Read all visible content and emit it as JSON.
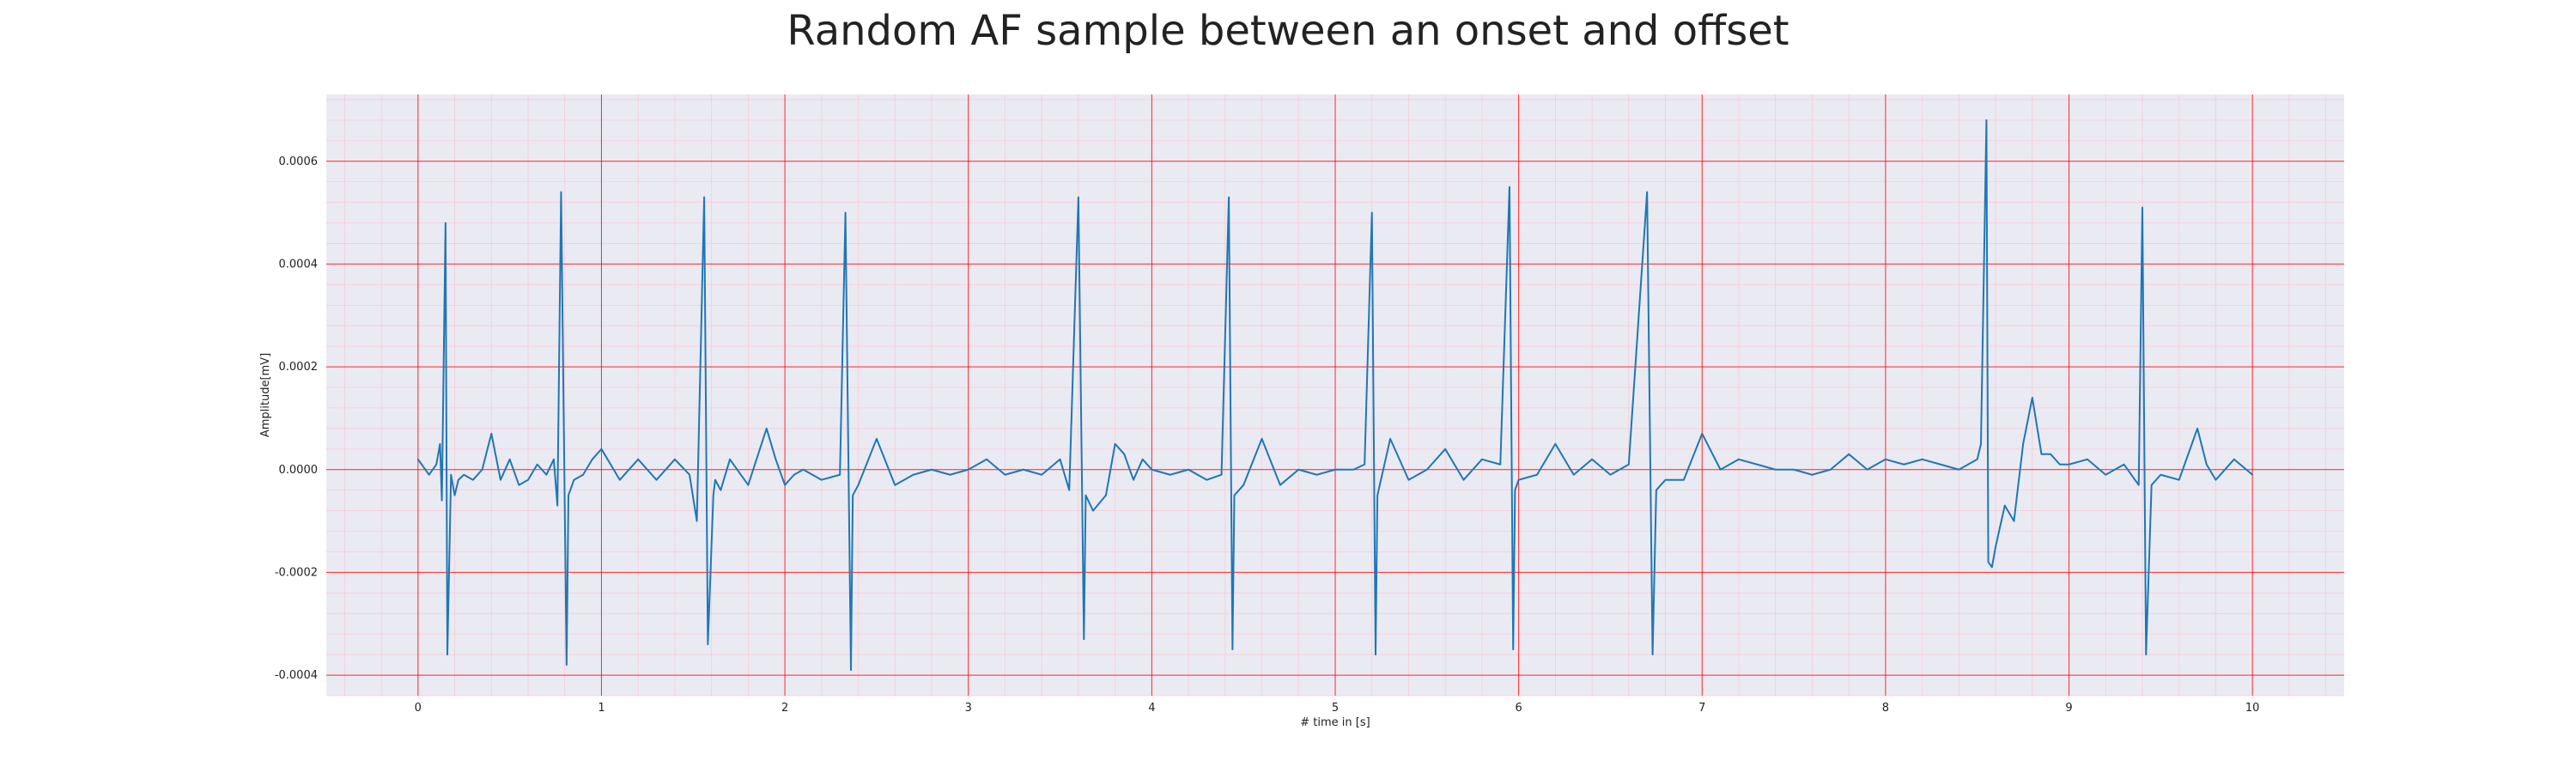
{
  "chart_data": {
    "type": "line",
    "title": "Random AF sample between an onset and offset",
    "xlabel": "# time in [s]",
    "ylabel": "Amplitude[mV]",
    "xlim": [
      -0.5,
      10.5
    ],
    "ylim": [
      -0.00044,
      0.00073
    ],
    "x_ticks": [
      0,
      1,
      2,
      3,
      4,
      5,
      6,
      7,
      8,
      9,
      10
    ],
    "x_tick_labels": [
      "0",
      "1",
      "2",
      "3",
      "4",
      "5",
      "6",
      "7",
      "8",
      "9",
      "10"
    ],
    "y_ticks": [
      -0.0004,
      -0.0002,
      0.0,
      0.0002,
      0.0004,
      0.0006
    ],
    "y_tick_labels": [
      "-0.0004",
      "-0.0002",
      "0.0000",
      "0.0002",
      "0.0004",
      "0.0006"
    ],
    "grid": true,
    "minor_grid": true,
    "colors": {
      "plot_background": "#eaeaf2",
      "major_grid": "#ff0000",
      "minor_grid": "#ffb6c1",
      "line": "#1f77b4"
    },
    "series": [
      {
        "x": [
          0,
          0.06,
          0.1,
          0.12,
          0.13,
          0.15,
          0.16,
          0.18,
          0.2,
          0.22,
          0.25,
          0.3,
          0.35,
          0.4,
          0.45,
          0.5,
          0.55,
          0.6,
          0.65,
          0.7,
          0.74,
          0.76,
          0.78,
          0.81,
          0.82,
          0.85,
          0.9,
          0.95,
          1.0,
          1.05,
          1.1,
          1.2,
          1.3,
          1.4,
          1.48,
          1.52,
          1.56,
          1.58,
          1.61,
          1.62,
          1.65,
          1.7,
          1.8,
          1.9,
          1.95,
          2.0,
          2.05,
          2.1,
          2.2,
          2.3,
          2.33,
          2.36,
          2.37,
          2.4,
          2.5,
          2.6,
          2.7,
          2.8,
          2.9,
          3.0,
          3.1,
          3.2,
          3.3,
          3.4,
          3.5,
          3.55,
          3.6,
          3.63,
          3.64,
          3.68,
          3.75,
          3.8,
          3.85,
          3.9,
          3.95,
          4.0,
          4.1,
          4.2,
          4.3,
          4.38,
          4.42,
          4.44,
          4.45,
          4.5,
          4.6,
          4.7,
          4.8,
          4.9,
          5.0,
          5.1,
          5.16,
          5.2,
          5.22,
          5.23,
          5.3,
          5.4,
          5.5,
          5.6,
          5.7,
          5.8,
          5.9,
          5.95,
          5.97,
          5.98,
          6.0,
          6.1,
          6.2,
          6.3,
          6.4,
          6.5,
          6.6,
          6.7,
          6.73,
          6.75,
          6.8,
          6.9,
          7.0,
          7.1,
          7.2,
          7.3,
          7.4,
          7.5,
          7.6,
          7.7,
          7.8,
          7.9,
          8.0,
          8.1,
          8.2,
          8.3,
          8.4,
          8.5,
          8.52,
          8.55,
          8.56,
          8.58,
          8.6,
          8.65,
          8.7,
          8.75,
          8.8,
          8.85,
          8.9,
          8.95,
          9.0,
          9.1,
          9.2,
          9.3,
          9.38,
          9.4,
          9.42,
          9.45,
          9.5,
          9.6,
          9.7,
          9.75,
          9.8,
          9.9,
          10.0
        ],
        "y": [
          2e-05,
          -1e-05,
          1e-05,
          5e-05,
          -6e-05,
          0.00048,
          -0.00036,
          -1e-05,
          -5e-05,
          -2e-05,
          -1e-05,
          -2e-05,
          0.0,
          7e-05,
          -2e-05,
          2e-05,
          -3e-05,
          -2e-05,
          1e-05,
          -1e-05,
          2e-05,
          -7e-05,
          0.00054,
          -0.00038,
          -5e-05,
          -2e-05,
          -1e-05,
          2e-05,
          4e-05,
          1e-05,
          -2e-05,
          2e-05,
          -2e-05,
          2e-05,
          -1e-05,
          -0.0001,
          0.00053,
          -0.00034,
          -5e-05,
          -2e-05,
          -4e-05,
          2e-05,
          -3e-05,
          8e-05,
          2e-05,
          -3e-05,
          -1e-05,
          0.0,
          -2e-05,
          -1e-05,
          0.0005,
          -0.00039,
          -5e-05,
          -3e-05,
          6e-05,
          -3e-05,
          -1e-05,
          0.0,
          -1e-05,
          0.0,
          2e-05,
          -1e-05,
          0.0,
          -1e-05,
          2e-05,
          -4e-05,
          0.00053,
          -0.00033,
          -5e-05,
          -8e-05,
          -5e-05,
          5e-05,
          3e-05,
          -2e-05,
          2e-05,
          0.0,
          -1e-05,
          0.0,
          -2e-05,
          -1e-05,
          0.00053,
          -0.00035,
          -5e-05,
          -3e-05,
          6e-05,
          -3e-05,
          0.0,
          -1e-05,
          0.0,
          0.0,
          1e-05,
          0.0005,
          -0.00036,
          -5e-05,
          6e-05,
          -2e-05,
          0.0,
          4e-05,
          -2e-05,
          2e-05,
          1e-05,
          0.00055,
          -0.00035,
          -4e-05,
          -2e-05,
          -1e-05,
          5e-05,
          -1e-05,
          2e-05,
          -1e-05,
          1e-05,
          0.00054,
          -0.00036,
          -4e-05,
          -2e-05,
          -2e-05,
          7e-05,
          0.0,
          2e-05,
          1e-05,
          0.0,
          0.0,
          -1e-05,
          0.0,
          3e-05,
          0.0,
          2e-05,
          1e-05,
          2e-05,
          1e-05,
          0.0,
          2e-05,
          5e-05,
          0.00068,
          -0.00018,
          -0.00019,
          -0.00015,
          -7e-05,
          -0.0001,
          5e-05,
          0.00014,
          3e-05,
          3e-05,
          1e-05,
          1e-05,
          2e-05,
          -1e-05,
          1e-05,
          -3e-05,
          0.00051,
          -0.00036,
          -3e-05,
          -1e-05,
          -2e-05,
          8e-05,
          1e-05,
          -2e-05,
          2e-05,
          -1e-05
        ]
      }
    ]
  }
}
